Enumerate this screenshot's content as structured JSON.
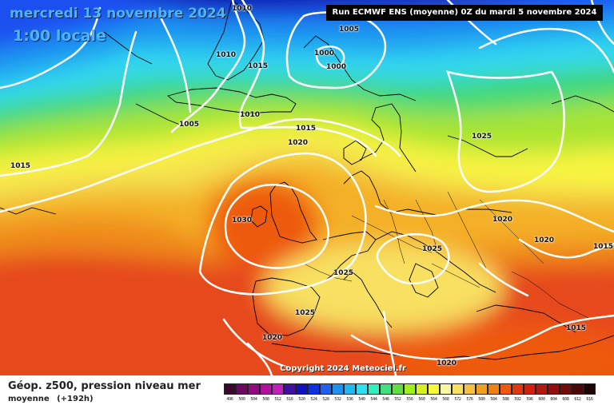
{
  "header": {
    "date": "mercredi 13 novembre 2024",
    "time": "1:00 locale",
    "run": "Run ECMWF ENS (moyenne) 0Z du mardi 5 novembre 2024"
  },
  "copyright": "Copyright 2024 Meteociel.fr",
  "footer": {
    "title": "Géop. z500, pression niveau mer",
    "subtitle": "moyenne",
    "lead": "(+192h)"
  },
  "isobars": [
    {
      "value": "1010",
      "lon": 302,
      "lat": 12
    },
    {
      "value": "1005",
      "lon": 436,
      "lat": 38
    },
    {
      "value": "1010",
      "lon": 282,
      "lat": 70
    },
    {
      "value": "1000",
      "lon": 405,
      "lat": 68
    },
    {
      "value": "1000",
      "lon": 420,
      "lat": 85
    },
    {
      "value": "1015",
      "lon": 322,
      "lat": 84
    },
    {
      "value": "1010",
      "lon": 312,
      "lat": 145
    },
    {
      "value": "1015",
      "lon": 382,
      "lat": 162
    },
    {
      "value": "1005",
      "lon": 236,
      "lat": 157
    },
    {
      "value": "1020",
      "lon": 372,
      "lat": 180
    },
    {
      "value": "1025",
      "lon": 602,
      "lat": 172
    },
    {
      "value": "1015",
      "lon": 25,
      "lat": 209
    },
    {
      "value": "1030",
      "lon": 302,
      "lat": 277
    },
    {
      "value": "1020",
      "lon": 628,
      "lat": 276
    },
    {
      "value": "1020",
      "lon": 680,
      "lat": 302
    },
    {
      "value": "1025",
      "lon": 540,
      "lat": 313
    },
    {
      "value": "1015",
      "lon": 754,
      "lat": 310
    },
    {
      "value": "1025",
      "lon": 429,
      "lat": 343
    },
    {
      "value": "1025",
      "lon": 381,
      "lat": 393
    },
    {
      "value": "1015",
      "lon": 720,
      "lat": 412
    },
    {
      "value": "1020",
      "lon": 340,
      "lat": 424
    },
    {
      "value": "1020",
      "lon": 558,
      "lat": 456
    }
  ],
  "colors": {
    "deep_purple": "#3a0a3a",
    "dark_blue": "#0a1ab0",
    "blue": "#1e50f0",
    "light_blue": "#1e9af0",
    "cyan": "#30e0f0",
    "green": "#40d880",
    "lime": "#90e030",
    "yellow": "#f0f040",
    "pale_yellow": "#f8f6b0",
    "orange": "#f0a020",
    "red_orange": "#ee5a10",
    "red": "#e02a10"
  },
  "legend": {
    "labels": [
      "496",
      "500",
      "504",
      "508",
      "512",
      "516",
      "520",
      "524",
      "528",
      "532",
      "536",
      "540",
      "544",
      "548",
      "552",
      "556",
      "560",
      "564",
      "568",
      "572",
      "576",
      "580",
      "584",
      "588",
      "592",
      "596",
      "600",
      "604",
      "608",
      "612",
      "616"
    ],
    "colors": [
      "#3a0a2a",
      "#6a0a5a",
      "#900a80",
      "#b010a0",
      "#c020c0",
      "#4010a0",
      "#1010c0",
      "#1030e0",
      "#2060f0",
      "#2090f0",
      "#20b8f0",
      "#30e0f0",
      "#30f0c0",
      "#40e080",
      "#60e040",
      "#a0f020",
      "#d8f020",
      "#f8f840",
      "#f8f8a0",
      "#f8e060",
      "#f8c040",
      "#f0a020",
      "#f08010",
      "#ee5a10",
      "#e03810",
      "#d02010",
      "#b01810",
      "#901010",
      "#700c0c",
      "#4a0808",
      "#200404"
    ]
  }
}
